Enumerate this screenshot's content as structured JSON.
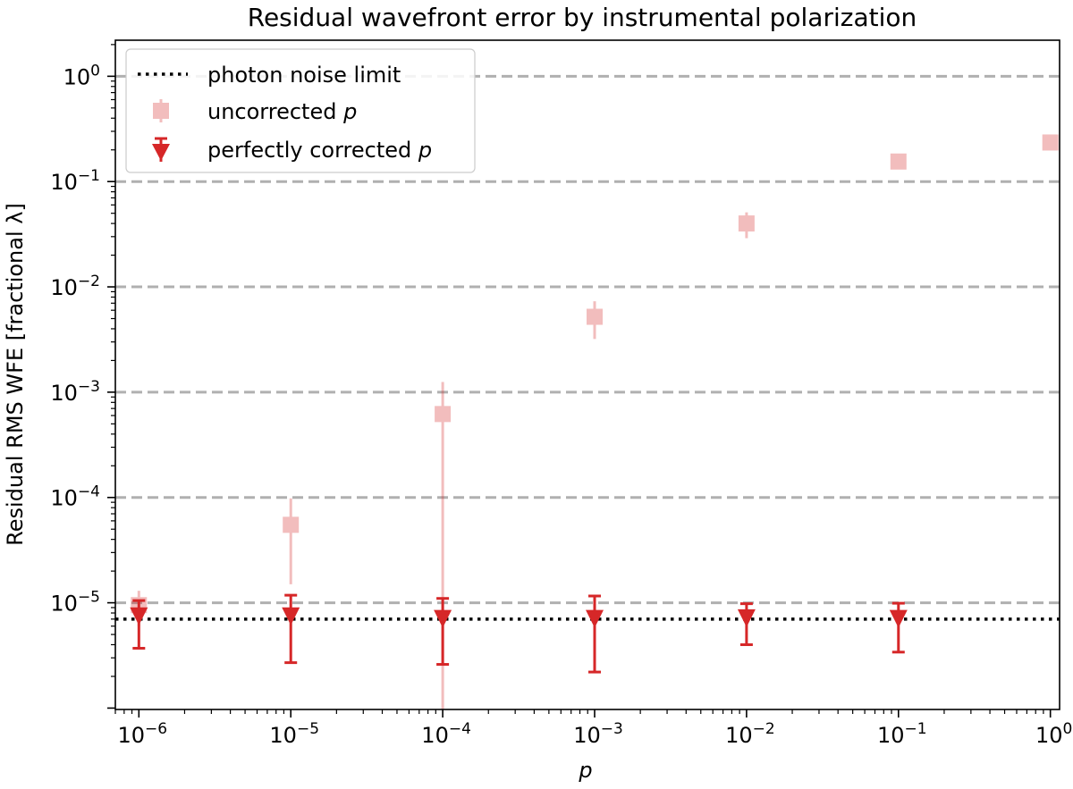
{
  "chart_data": {
    "type": "scatter",
    "title": "Residual wavefront error by instrumental polarization",
    "xlabel": "p",
    "ylabel": "Residual RMS WFE [fractional λ]",
    "xscale": "log",
    "yscale": "log",
    "xlim": [
      7e-07,
      1.15
    ],
    "ylim": [
      9.7e-07,
      2.2
    ],
    "x_ticks": [
      {
        "value": 1e-06,
        "base": "10",
        "exp": "−6"
      },
      {
        "value": 1e-05,
        "base": "10",
        "exp": "−5"
      },
      {
        "value": 0.0001,
        "base": "10",
        "exp": "−4"
      },
      {
        "value": 0.001,
        "base": "10",
        "exp": "−3"
      },
      {
        "value": 0.01,
        "base": "10",
        "exp": "−2"
      },
      {
        "value": 0.1,
        "base": "10",
        "exp": "−1"
      },
      {
        "value": 1,
        "base": "10",
        "exp": "0"
      }
    ],
    "y_ticks": [
      {
        "value": 1e-05,
        "base": "10",
        "exp": "−5"
      },
      {
        "value": 0.0001,
        "base": "10",
        "exp": "−4"
      },
      {
        "value": 0.001,
        "base": "10",
        "exp": "−3"
      },
      {
        "value": 0.01,
        "base": "10",
        "exp": "−2"
      },
      {
        "value": 0.1,
        "base": "10",
        "exp": "−1"
      },
      {
        "value": 1,
        "base": "10",
        "exp": "0"
      }
    ],
    "grid": "horizontal dashed at decades",
    "legend_position": "top-left",
    "reference_lines": [
      {
        "name": "photon noise limit",
        "y": 7e-06,
        "style": "dotted",
        "color": "#000000"
      }
    ],
    "series": [
      {
        "name": "uncorrected",
        "name_math": "p",
        "marker": "square",
        "color": "#d62728",
        "opacity": 0.3,
        "points": [
          {
            "x": 1e-06,
            "y": 9.5e-06,
            "lo": 6e-06,
            "hi": 1.3e-05
          },
          {
            "x": 1e-05,
            "y": 5.5e-05,
            "lo": 1.5e-05,
            "hi": 9.8e-05
          },
          {
            "x": 0.0001,
            "y": 0.00062,
            "lo": 9.7e-07,
            "hi": 0.00125
          },
          {
            "x": 0.001,
            "y": 0.0052,
            "lo": 0.0032,
            "hi": 0.0073
          },
          {
            "x": 0.01,
            "y": 0.04,
            "lo": 0.029,
            "hi": 0.051
          },
          {
            "x": 0.1,
            "y": 0.155,
            "lo": 0.14,
            "hi": 0.17
          },
          {
            "x": 1,
            "y": 0.235,
            "lo": 0.225,
            "hi": 0.245
          }
        ]
      },
      {
        "name": "perfectly corrected",
        "name_math": "p",
        "marker": "triangle-down",
        "color": "#d62728",
        "opacity": 1,
        "points": [
          {
            "x": 1e-06,
            "y": 7.3e-06,
            "lo": 3.7e-06,
            "hi": 1.05e-05
          },
          {
            "x": 1e-05,
            "y": 7.3e-06,
            "lo": 2.7e-06,
            "hi": 1.18e-05
          },
          {
            "x": 0.0001,
            "y": 6.9e-06,
            "lo": 2.6e-06,
            "hi": 1.1e-05
          },
          {
            "x": 0.001,
            "y": 6.9e-06,
            "lo": 2.2e-06,
            "hi": 1.16e-05
          },
          {
            "x": 0.01,
            "y": 7e-06,
            "lo": 4e-06,
            "hi": 9.8e-06
          },
          {
            "x": 0.1,
            "y": 6.9e-06,
            "lo": 3.4e-06,
            "hi": 9.9e-06
          }
        ]
      }
    ]
  }
}
